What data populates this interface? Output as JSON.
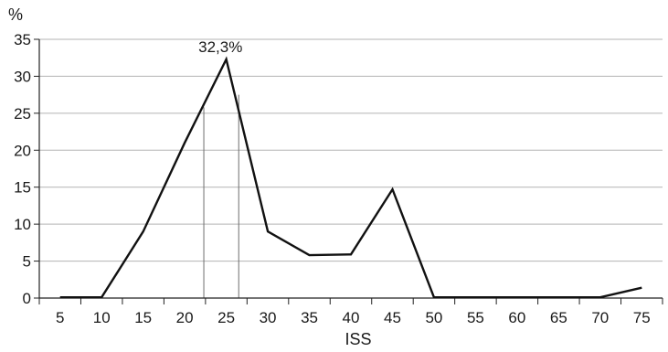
{
  "chart_data": {
    "type": "line",
    "x": [
      5,
      10,
      15,
      20,
      25,
      30,
      35,
      40,
      45,
      50,
      55,
      60,
      65,
      70,
      75
    ],
    "series": [
      {
        "values": [
          0.1,
          0.1,
          9,
          21,
          32.3,
          9,
          5.8,
          5.9,
          14.7,
          0.1,
          0.1,
          0.1,
          0.1,
          0.1,
          1.4
        ]
      }
    ],
    "ylim": [
      0,
      35
    ],
    "yticks": [
      0,
      5,
      10,
      15,
      20,
      25,
      30,
      35
    ],
    "xticks": [
      5,
      10,
      15,
      20,
      25,
      30,
      35,
      40,
      45,
      50,
      55,
      60,
      65,
      70,
      75
    ],
    "ylabel": "%",
    "xlabel": "ISS",
    "grid": true,
    "annotations": [
      {
        "x": 24.3,
        "y": 32.3,
        "text": "32,3%"
      }
    ],
    "reference_lines": [
      {
        "x": 22.3,
        "y_to": 25.8
      },
      {
        "x": 26.5,
        "y_to": 27.5
      }
    ]
  }
}
